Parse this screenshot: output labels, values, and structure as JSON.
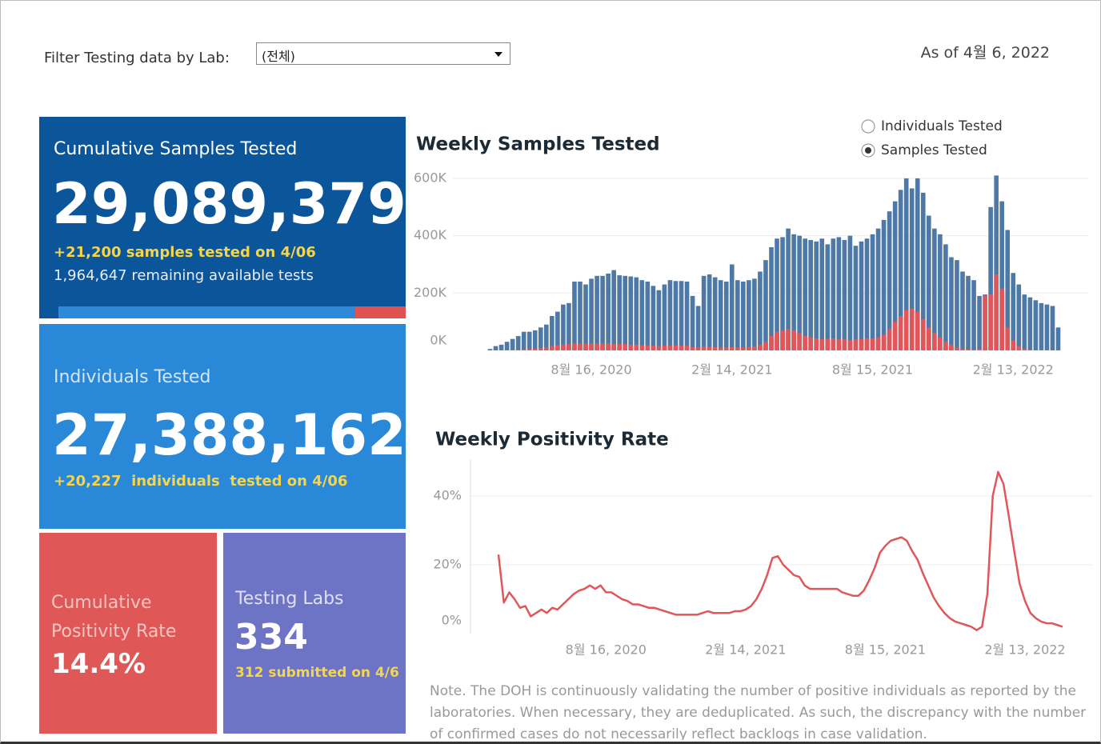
{
  "filter": {
    "label": "Filter Testing data by Lab:",
    "selected": "(전체)"
  },
  "as_of": "As of 4월 6, 2022",
  "cards": [
    {
      "title": "Cumulative Samples Tested",
      "value": "29,089,379",
      "lines": [
        "+21,200 samples tested on 4/06",
        "1,964,647 remaining available tests"
      ]
    },
    {
      "title": "Individuals Tested",
      "value": "27,388,162",
      "lines": [
        "+20,227  individuals  tested on 4/06"
      ]
    },
    {
      "title": "Cumulative Positivity Rate",
      "value": "14.4%",
      "lines": []
    },
    {
      "title": "Testing Labs",
      "value": "334",
      "lines": [
        "312 submitted on 4/6"
      ]
    }
  ],
  "toggle": {
    "options": [
      "Individuals Tested",
      "Samples Tested"
    ],
    "selected": 1
  },
  "chart_data": [
    {
      "type": "bar",
      "title": "Weekly Samples Tested",
      "categories": [
        null,
        null,
        null,
        null,
        null,
        null,
        null,
        null,
        null,
        null,
        null,
        null,
        null,
        null,
        null,
        null,
        null,
        null,
        "8월 16, 2020",
        null,
        null,
        null,
        null,
        null,
        null,
        null,
        null,
        null,
        null,
        null,
        null,
        null,
        null,
        null,
        null,
        null,
        null,
        null,
        null,
        null,
        null,
        null,
        null,
        "2월 14, 2021",
        null,
        null,
        null,
        null,
        null,
        null,
        null,
        null,
        null,
        null,
        null,
        null,
        null,
        null,
        null,
        null,
        null,
        null,
        null,
        null,
        null,
        null,
        null,
        null,
        "8월 15, 2021",
        null,
        null,
        null,
        null,
        null,
        null,
        null,
        null,
        null,
        null,
        null,
        null,
        null,
        null,
        null,
        null,
        null,
        null,
        null,
        null,
        null,
        null,
        null,
        null,
        "2월 13, 2022",
        null,
        null,
        null,
        null,
        null,
        null,
        null,
        null
      ],
      "series": [
        {
          "color": "#4e79a7",
          "values": [
            5000,
            15000,
            20000,
            30000,
            40000,
            50000,
            65000,
            65000,
            70000,
            80000,
            90000,
            120000,
            135000,
            160000,
            165000,
            240000,
            240000,
            230000,
            250000,
            260000,
            260000,
            268000,
            280000,
            262000,
            260000,
            258000,
            255000,
            245000,
            240000,
            225000,
            210000,
            230000,
            245000,
            242000,
            242000,
            240000,
            190000,
            155000,
            260000,
            265000,
            255000,
            245000,
            240000,
            300000,
            245000,
            240000,
            245000,
            250000,
            275000,
            315000,
            360000,
            390000,
            395000,
            425000,
            405000,
            400000,
            390000,
            385000,
            380000,
            390000,
            370000,
            390000,
            395000,
            385000,
            400000,
            365000,
            380000,
            390000,
            405000,
            425000,
            455000,
            485000,
            520000,
            560000,
            600000,
            565000,
            600000,
            550000,
            470000,
            425000,
            405000,
            370000,
            325000,
            315000,
            275000,
            260000,
            245000,
            190000,
            195000,
            500000,
            610000,
            520000,
            420000,
            270000,
            230000,
            195000,
            185000,
            175000,
            165000,
            160000,
            155000,
            80000
          ]
        },
        {
          "color": "#e15759",
          "values": [
            1000,
            1000,
            2000,
            2000,
            3000,
            3000,
            4000,
            5000,
            6000,
            8000,
            10000,
            15000,
            18000,
            20000,
            22000,
            24000,
            24000,
            23000,
            25000,
            24000,
            24000,
            25000,
            22000,
            22000,
            22000,
            20000,
            20000,
            18000,
            18000,
            16000,
            15000,
            17000,
            18000,
            18000,
            17000,
            16000,
            12000,
            10000,
            14000,
            12000,
            11000,
            10000,
            10000,
            12000,
            10000,
            10000,
            12000,
            14000,
            20000,
            30000,
            50000,
            65000,
            70000,
            75000,
            70000,
            60000,
            50000,
            45000,
            42000,
            40000,
            40000,
            42000,
            38000,
            40000,
            36000,
            38000,
            40000,
            42000,
            42000,
            45000,
            55000,
            75000,
            100000,
            120000,
            140000,
            145000,
            135000,
            110000,
            80000,
            60000,
            45000,
            30000,
            20000,
            10000,
            5000,
            5000,
            3000,
            5000,
            190000,
            195000,
            265000,
            215000,
            80000,
            35000,
            15000,
            5000,
            3000,
            2000,
            2000,
            2000,
            1000,
            1000
          ]
        }
      ],
      "ylim": [
        0,
        620000
      ],
      "yticks": [
        {
          "value": 0,
          "label": "0K"
        },
        {
          "value": 200000,
          "label": "200K"
        },
        {
          "value": 400000,
          "label": "400K"
        },
        {
          "value": 600000,
          "label": "600K"
        }
      ],
      "grid": true
    },
    {
      "type": "line",
      "title": "Weekly Positivity Rate",
      "categories": [
        null,
        null,
        null,
        null,
        null,
        null,
        null,
        null,
        null,
        null,
        null,
        null,
        null,
        null,
        null,
        null,
        null,
        null,
        null,
        null,
        "8월 16, 2020",
        null,
        null,
        null,
        null,
        null,
        null,
        null,
        null,
        null,
        null,
        null,
        null,
        null,
        null,
        null,
        null,
        null,
        null,
        null,
        null,
        null,
        null,
        null,
        null,
        null,
        "2월 14, 2021",
        null,
        null,
        null,
        null,
        null,
        null,
        null,
        null,
        null,
        null,
        null,
        null,
        null,
        null,
        null,
        null,
        null,
        null,
        null,
        null,
        null,
        null,
        null,
        null,
        null,
        "8월 15, 2021",
        null,
        null,
        null,
        null,
        null,
        null,
        null,
        null,
        null,
        null,
        null,
        null,
        null,
        null,
        null,
        null,
        null,
        null,
        null,
        null,
        null,
        null,
        null,
        null,
        null,
        "2월 13, 2022",
        null,
        null,
        null,
        null,
        null,
        null,
        null
      ],
      "values": [
        23,
        9,
        12,
        10,
        7.5,
        8,
        5,
        6,
        7,
        6,
        7.5,
        7,
        8.5,
        10,
        11.5,
        12.5,
        13,
        14,
        13,
        14,
        12,
        12,
        11,
        10,
        9.5,
        8.5,
        8.5,
        8,
        7.5,
        7.5,
        7,
        6.5,
        6,
        5.5,
        5.5,
        5.5,
        5.5,
        5.5,
        6,
        6.5,
        6,
        6,
        6,
        6,
        6.5,
        6.5,
        7,
        8,
        10,
        13,
        17,
        22,
        22.5,
        20,
        18.5,
        17,
        16.5,
        14,
        13,
        13,
        13,
        13,
        13,
        13,
        12,
        11.5,
        11,
        11,
        12.5,
        15.5,
        19,
        23.5,
        25.5,
        27,
        27.5,
        28,
        27,
        24,
        21.5,
        17.5,
        14,
        10.5,
        8,
        6,
        4.5,
        3.5,
        3,
        2.5,
        2,
        1,
        2,
        11.5,
        40,
        47,
        43.5,
        34,
        24,
        14.5,
        9.5,
        6,
        4.5,
        3.5,
        3,
        3,
        2.5,
        2
      ],
      "color": "#e15759",
      "ylim": [
        0,
        50
      ],
      "yticks": [
        {
          "value": 0,
          "label": "0%"
        },
        {
          "value": 20,
          "label": "20%"
        },
        {
          "value": 40,
          "label": "40%"
        }
      ],
      "grid": true
    }
  ],
  "note": "Note. The DOH is continuously validating the number of positive individuals as reported by the laboratories. When necessary, they are deduplicated. As such, the discrepancy with the number of confirmed cases do not necessarily reflect backlogs in case validation."
}
